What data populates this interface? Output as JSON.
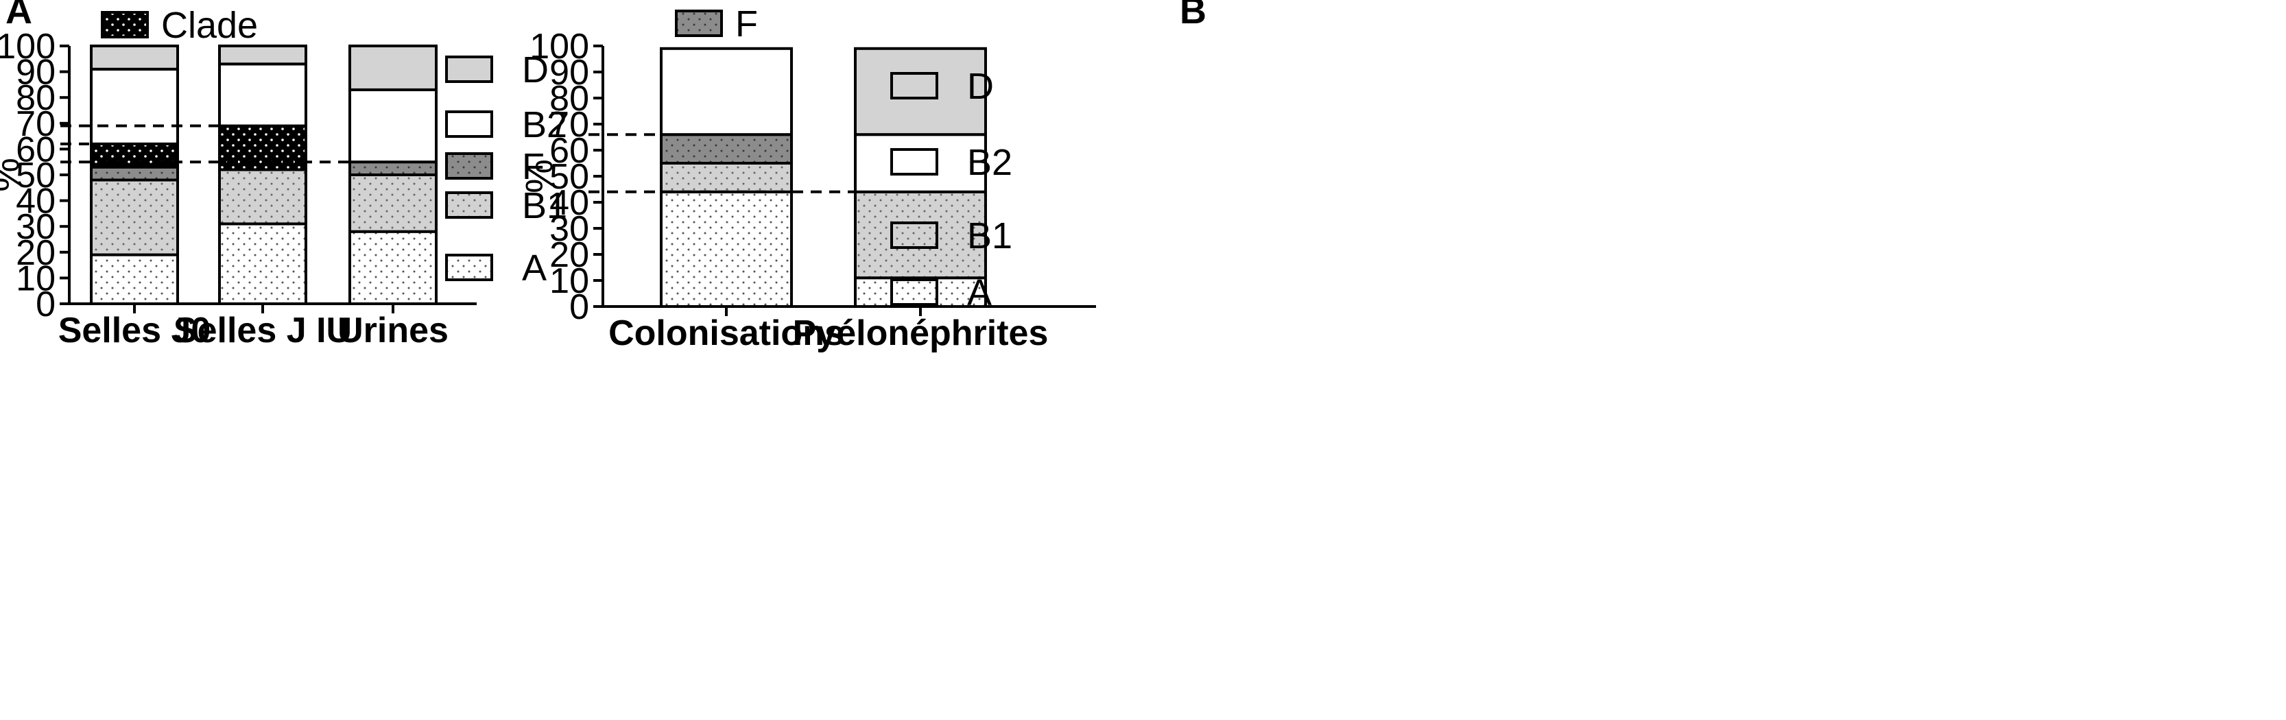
{
  "chart_data": [
    {
      "panel": "A",
      "type": "bar",
      "stacked": true,
      "ylabel": "%",
      "ylim": [
        0,
        100
      ],
      "yticks": [
        0,
        10,
        20,
        30,
        40,
        50,
        60,
        70,
        80,
        90,
        100
      ],
      "categories": [
        "Selles J0",
        "Selles J IU",
        "Urines"
      ],
      "series": [
        {
          "name": "A",
          "values": [
            19,
            31,
            28
          ]
        },
        {
          "name": "B1",
          "values": [
            29,
            21,
            22
          ]
        },
        {
          "name": "F",
          "values": [
            5,
            0,
            5
          ]
        },
        {
          "name": "Clade",
          "values": [
            9,
            17,
            0
          ]
        },
        {
          "name": "B2",
          "values": [
            29,
            24,
            28
          ]
        },
        {
          "name": "D",
          "values": [
            9,
            7,
            17
          ]
        }
      ],
      "reference_lines": [
        69,
        62,
        55
      ],
      "legend": [
        "D",
        "B2",
        "F",
        "B1",
        "A"
      ],
      "top_legend": [
        "Clade"
      ],
      "grid": false
    },
    {
      "panel": "B",
      "type": "bar",
      "stacked": true,
      "ylabel": "%",
      "ylim": [
        0,
        100
      ],
      "yticks": [
        0,
        10,
        20,
        30,
        40,
        50,
        60,
        70,
        80,
        90,
        100
      ],
      "categories": [
        "Colonisations",
        "Pyélonéphrites"
      ],
      "series": [
        {
          "name": "A",
          "values": [
            44,
            11
          ]
        },
        {
          "name": "B1",
          "values": [
            11,
            33
          ]
        },
        {
          "name": "F",
          "values": [
            11,
            0
          ]
        },
        {
          "name": "B2",
          "values": [
            33,
            22
          ]
        },
        {
          "name": "D",
          "values": [
            0,
            33
          ]
        }
      ],
      "reference_lines": [
        66,
        44
      ],
      "legend": [
        "D",
        "B2",
        "B1",
        "A"
      ],
      "top_legend": [
        "F"
      ],
      "grid": false
    }
  ],
  "colors": {
    "A": "#ffffff",
    "B1": "#d2d2d2",
    "F": "#8c8c8c",
    "Clade": "#000000",
    "B2": "#ffffff",
    "D": "#d3d3d3"
  }
}
